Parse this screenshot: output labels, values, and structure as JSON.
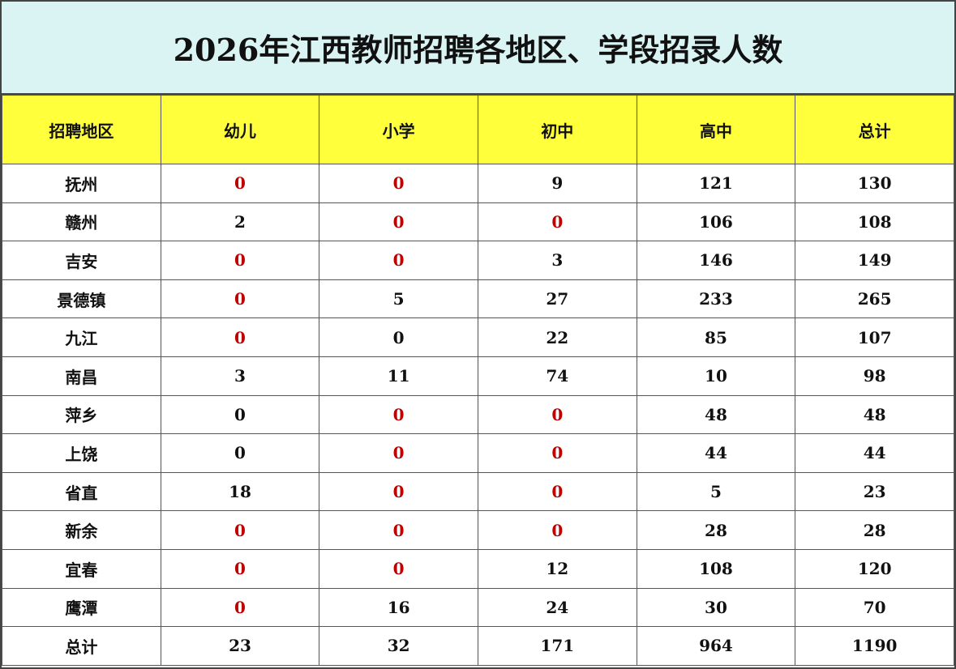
{
  "title": "2026年江西教师招聘各地区、学段招录人数",
  "title_background": "#daf3f3",
  "header_background": "#ffff3c",
  "table": {
    "header": [
      "招聘地区",
      "幼儿",
      "小学",
      "初中",
      "高中",
      "总计"
    ],
    "rows": [
      {
        "label": "抚州",
        "values": [
          0,
          0,
          9,
          121,
          130
        ],
        "colors": [
          "#c00000",
          "#c00000",
          "#111111",
          "#111111",
          "#111111"
        ]
      },
      {
        "label": "赣州",
        "values": [
          2,
          0,
          0,
          106,
          108
        ],
        "colors": [
          "#111111",
          "#c00000",
          "#c00000",
          "#111111",
          "#111111"
        ]
      },
      {
        "label": "吉安",
        "values": [
          0,
          0,
          3,
          146,
          149
        ],
        "colors": [
          "#c00000",
          "#c00000",
          "#111111",
          "#111111",
          "#111111"
        ]
      },
      {
        "label": "景德镇",
        "values": [
          0,
          5,
          27,
          233,
          265
        ],
        "colors": [
          "#c00000",
          "#111111",
          "#111111",
          "#111111",
          "#111111"
        ]
      },
      {
        "label": "九江",
        "values": [
          0,
          0,
          22,
          85,
          107
        ],
        "colors": [
          "#c00000",
          "#111111",
          "#111111",
          "#111111",
          "#111111"
        ]
      },
      {
        "label": "南昌",
        "values": [
          3,
          11,
          74,
          10,
          98
        ],
        "colors": [
          "#111111",
          "#111111",
          "#111111",
          "#111111",
          "#111111"
        ]
      },
      {
        "label": "萍乡",
        "values": [
          0,
          0,
          0,
          48,
          48
        ],
        "colors": [
          "#111111",
          "#c00000",
          "#c00000",
          "#111111",
          "#111111"
        ]
      },
      {
        "label": "上饶",
        "values": [
          0,
          0,
          0,
          44,
          44
        ],
        "colors": [
          "#111111",
          "#c00000",
          "#c00000",
          "#111111",
          "#111111"
        ]
      },
      {
        "label": "省直",
        "values": [
          18,
          0,
          0,
          5,
          23
        ],
        "colors": [
          "#111111",
          "#c00000",
          "#c00000",
          "#111111",
          "#111111"
        ]
      },
      {
        "label": "新余",
        "values": [
          0,
          0,
          0,
          28,
          28
        ],
        "colors": [
          "#c00000",
          "#c00000",
          "#c00000",
          "#111111",
          "#111111"
        ]
      },
      {
        "label": "宜春",
        "values": [
          0,
          0,
          12,
          108,
          120
        ],
        "colors": [
          "#c00000",
          "#c00000",
          "#111111",
          "#111111",
          "#111111"
        ]
      },
      {
        "label": "鹰潭",
        "values": [
          0,
          16,
          24,
          30,
          70
        ],
        "colors": [
          "#c00000",
          "#111111",
          "#111111",
          "#111111",
          "#111111"
        ]
      },
      {
        "label": "总计",
        "values": [
          23,
          32,
          171,
          964,
          1190
        ],
        "colors": [
          "#111111",
          "#111111",
          "#111111",
          "#111111",
          "#111111"
        ]
      }
    ]
  }
}
